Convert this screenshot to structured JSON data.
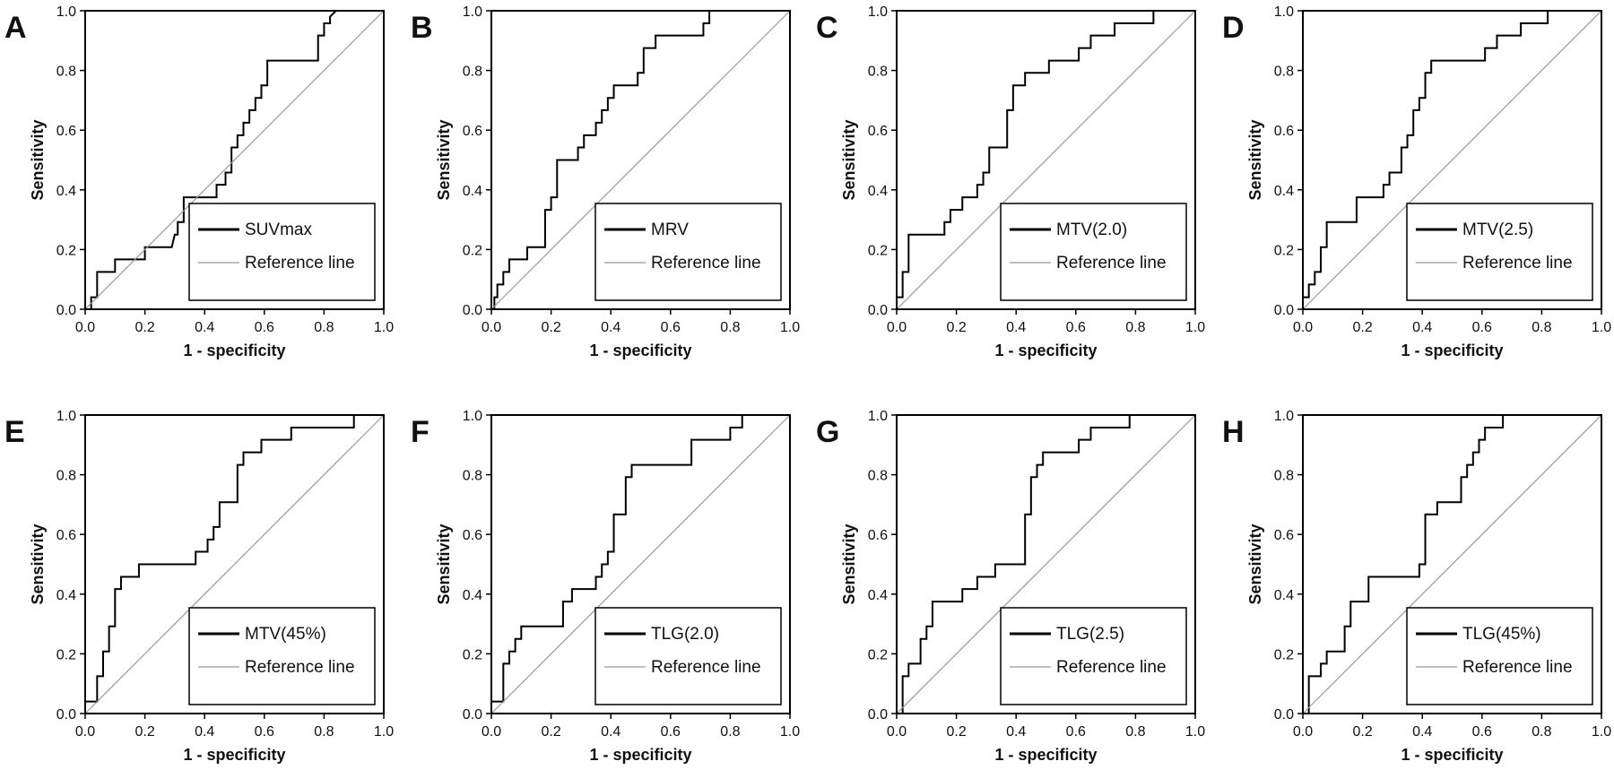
{
  "colors": {
    "roc": "#000000",
    "reference": "#999999",
    "axis": "#000000",
    "background": "#ffffff"
  },
  "chart_data": [
    {
      "panel": "A",
      "type": "line",
      "xlabel": "1 - specificity",
      "ylabel": "Sensitivity",
      "xlim": [
        0,
        1
      ],
      "ylim": [
        0,
        1
      ],
      "xticks": [
        "0.0",
        "0.2",
        "0.4",
        "0.6",
        "0.8",
        "1.0"
      ],
      "yticks": [
        "0.0",
        "0.2",
        "0.4",
        "0.6",
        "0.8",
        "1.0"
      ],
      "legend_position": "bottom-right",
      "series": [
        {
          "name": "SUVmax",
          "style": "roc",
          "x": [
            0,
            0.02,
            0.02,
            0.04,
            0.04,
            0.1,
            0.1,
            0.2,
            0.2,
            0.29,
            0.3,
            0.31,
            0.31,
            0.33,
            0.33,
            0.44,
            0.44,
            0.47,
            0.47,
            0.49,
            0.49,
            0.51,
            0.51,
            0.53,
            0.53,
            0.55,
            0.55,
            0.57,
            0.57,
            0.59,
            0.59,
            0.61,
            0.61,
            0.78,
            0.78,
            0.8,
            0.8,
            0.82,
            0.82,
            0.84
          ],
          "y": [
            0,
            0,
            0.04,
            0.04,
            0.125,
            0.125,
            0.167,
            0.167,
            0.208,
            0.208,
            0.25,
            0.25,
            0.292,
            0.292,
            0.375,
            0.375,
            0.417,
            0.417,
            0.458,
            0.458,
            0.542,
            0.542,
            0.583,
            0.583,
            0.625,
            0.625,
            0.667,
            0.667,
            0.708,
            0.708,
            0.75,
            0.75,
            0.833,
            0.833,
            0.917,
            0.917,
            0.958,
            0.958,
            0.98,
            1.0
          ]
        },
        {
          "name": "Reference line",
          "style": "reference",
          "x": [
            0,
            1
          ],
          "y": [
            0,
            1
          ]
        }
      ]
    },
    {
      "panel": "B",
      "type": "line",
      "xlabel": "1 - specificity",
      "ylabel": "Sensitivity",
      "xlim": [
        0,
        1
      ],
      "ylim": [
        0,
        1
      ],
      "xticks": [
        "0.0",
        "0.2",
        "0.4",
        "0.6",
        "0.8",
        "1.0"
      ],
      "yticks": [
        "0.0",
        "0.2",
        "0.4",
        "0.6",
        "0.8",
        "1.0"
      ],
      "legend_position": "bottom-right",
      "series": [
        {
          "name": "MRV",
          "style": "roc",
          "x": [
            0,
            0.01,
            0.01,
            0.02,
            0.02,
            0.04,
            0.04,
            0.06,
            0.06,
            0.12,
            0.12,
            0.18,
            0.18,
            0.2,
            0.2,
            0.22,
            0.22,
            0.29,
            0.29,
            0.31,
            0.31,
            0.35,
            0.35,
            0.37,
            0.37,
            0.39,
            0.39,
            0.41,
            0.41,
            0.49,
            0.49,
            0.51,
            0.51,
            0.55,
            0.55,
            0.71,
            0.71,
            0.73,
            0.73,
            0.88,
            0.88,
            0.9
          ],
          "y": [
            0,
            0,
            0.04,
            0.04,
            0.083,
            0.083,
            0.125,
            0.125,
            0.167,
            0.167,
            0.208,
            0.208,
            0.333,
            0.333,
            0.375,
            0.375,
            0.5,
            0.5,
            0.542,
            0.542,
            0.583,
            0.583,
            0.625,
            0.625,
            0.667,
            0.667,
            0.708,
            0.708,
            0.75,
            0.75,
            0.792,
            0.792,
            0.875,
            0.875,
            0.917,
            0.917,
            0.958,
            0.958,
            1.0,
            1.0,
            1.0,
            1.0
          ]
        },
        {
          "name": "Reference line",
          "style": "reference",
          "x": [
            0,
            1
          ],
          "y": [
            0,
            1
          ]
        }
      ]
    },
    {
      "panel": "C",
      "type": "line",
      "xlabel": "1 - specificity",
      "ylabel": "Sensitivity",
      "xlim": [
        0,
        1
      ],
      "ylim": [
        0,
        1
      ],
      "xticks": [
        "0.0",
        "0.2",
        "0.4",
        "0.6",
        "0.8",
        "1.0"
      ],
      "yticks": [
        "0.0",
        "0.2",
        "0.4",
        "0.6",
        "0.8",
        "1.0"
      ],
      "legend_position": "bottom-right",
      "series": [
        {
          "name": "MTV(2.0)",
          "style": "roc",
          "x": [
            0,
            0.02,
            0.02,
            0.04,
            0.04,
            0.16,
            0.16,
            0.18,
            0.18,
            0.22,
            0.22,
            0.27,
            0.27,
            0.29,
            0.29,
            0.31,
            0.31,
            0.37,
            0.37,
            0.39,
            0.39,
            0.43,
            0.43,
            0.51,
            0.51,
            0.61,
            0.61,
            0.65,
            0.65,
            0.69,
            0.69,
            0.73,
            0.73,
            0.76,
            0.76,
            0.86,
            0.86,
            0.88
          ],
          "y": [
            0.04,
            0.04,
            0.125,
            0.125,
            0.25,
            0.25,
            0.292,
            0.292,
            0.333,
            0.333,
            0.375,
            0.375,
            0.417,
            0.417,
            0.458,
            0.458,
            0.542,
            0.542,
            0.667,
            0.667,
            0.75,
            0.75,
            0.792,
            0.792,
            0.833,
            0.833,
            0.875,
            0.875,
            0.917,
            0.917,
            0.917,
            0.917,
            0.958,
            0.958,
            0.958,
            0.958,
            1.0,
            1.0
          ]
        },
        {
          "name": "Reference line",
          "style": "reference",
          "x": [
            0,
            1
          ],
          "y": [
            0,
            1
          ]
        }
      ]
    },
    {
      "panel": "D",
      "type": "line",
      "xlabel": "1 - specificity",
      "ylabel": "Sensitivity",
      "xlim": [
        0,
        1
      ],
      "ylim": [
        0,
        1
      ],
      "xticks": [
        "0.0",
        "0.2",
        "0.4",
        "0.6",
        "0.8",
        "1.0"
      ],
      "yticks": [
        "0.0",
        "0.2",
        "0.4",
        "0.6",
        "0.8",
        "1.0"
      ],
      "legend_position": "bottom-right",
      "series": [
        {
          "name": "MTV(2.5)",
          "style": "roc",
          "x": [
            0,
            0.02,
            0.02,
            0.04,
            0.04,
            0.06,
            0.06,
            0.08,
            0.08,
            0.18,
            0.18,
            0.27,
            0.27,
            0.29,
            0.29,
            0.33,
            0.33,
            0.35,
            0.35,
            0.37,
            0.37,
            0.39,
            0.39,
            0.41,
            0.41,
            0.43,
            0.43,
            0.49,
            0.49,
            0.61,
            0.61,
            0.65,
            0.65,
            0.73,
            0.73,
            0.76,
            0.76,
            0.82,
            0.82
          ],
          "y": [
            0.04,
            0.04,
            0.083,
            0.083,
            0.125,
            0.125,
            0.208,
            0.208,
            0.292,
            0.292,
            0.375,
            0.375,
            0.417,
            0.417,
            0.458,
            0.458,
            0.542,
            0.542,
            0.583,
            0.583,
            0.667,
            0.667,
            0.708,
            0.708,
            0.792,
            0.792,
            0.833,
            0.833,
            0.833,
            0.833,
            0.875,
            0.875,
            0.917,
            0.917,
            0.958,
            0.958,
            0.958,
            0.958,
            1.0
          ]
        },
        {
          "name": "Reference line",
          "style": "reference",
          "x": [
            0,
            1
          ],
          "y": [
            0,
            1
          ]
        }
      ]
    },
    {
      "panel": "E",
      "type": "line",
      "xlabel": "1 - specificity",
      "ylabel": "Sensitivity",
      "xlim": [
        0,
        1
      ],
      "ylim": [
        0,
        1
      ],
      "xticks": [
        "0.0",
        "0.2",
        "0.4",
        "0.6",
        "0.8",
        "1.0"
      ],
      "yticks": [
        "0.0",
        "0.2",
        "0.4",
        "0.6",
        "0.8",
        "1.0"
      ],
      "legend_position": "bottom-right",
      "series": [
        {
          "name": "MTV(45%)",
          "style": "roc",
          "x": [
            0,
            0.04,
            0.04,
            0.06,
            0.06,
            0.08,
            0.08,
            0.1,
            0.1,
            0.12,
            0.12,
            0.18,
            0.18,
            0.37,
            0.37,
            0.41,
            0.41,
            0.43,
            0.43,
            0.45,
            0.45,
            0.51,
            0.51,
            0.53,
            0.53,
            0.59,
            0.59,
            0.69,
            0.69,
            0.76,
            0.76,
            0.9,
            0.9,
            0.92
          ],
          "y": [
            0.04,
            0.04,
            0.125,
            0.125,
            0.208,
            0.208,
            0.292,
            0.292,
            0.417,
            0.417,
            0.458,
            0.458,
            0.5,
            0.5,
            0.542,
            0.542,
            0.583,
            0.583,
            0.625,
            0.625,
            0.708,
            0.708,
            0.833,
            0.833,
            0.875,
            0.875,
            0.917,
            0.917,
            0.958,
            0.958,
            0.958,
            0.958,
            1.0,
            1.0
          ]
        },
        {
          "name": "Reference line",
          "style": "reference",
          "x": [
            0,
            1
          ],
          "y": [
            0,
            1
          ]
        }
      ]
    },
    {
      "panel": "F",
      "type": "line",
      "xlabel": "1 - specificity",
      "ylabel": "Sensitivity",
      "xlim": [
        0,
        1
      ],
      "ylim": [
        0,
        1
      ],
      "xticks": [
        "0.0",
        "0.2",
        "0.4",
        "0.6",
        "0.8",
        "1.0"
      ],
      "yticks": [
        "0.0",
        "0.2",
        "0.4",
        "0.6",
        "0.8",
        "1.0"
      ],
      "legend_position": "bottom-right",
      "series": [
        {
          "name": "TLG(2.0)",
          "style": "roc",
          "x": [
            0,
            0.04,
            0.04,
            0.06,
            0.06,
            0.08,
            0.08,
            0.1,
            0.1,
            0.24,
            0.24,
            0.27,
            0.27,
            0.35,
            0.35,
            0.37,
            0.37,
            0.39,
            0.39,
            0.41,
            0.41,
            0.45,
            0.45,
            0.47,
            0.47,
            0.49,
            0.49,
            0.51,
            0.51,
            0.67,
            0.67,
            0.8,
            0.8,
            0.84,
            0.84
          ],
          "y": [
            0.04,
            0.04,
            0.167,
            0.167,
            0.208,
            0.208,
            0.25,
            0.25,
            0.292,
            0.292,
            0.375,
            0.375,
            0.417,
            0.417,
            0.458,
            0.458,
            0.5,
            0.5,
            0.542,
            0.542,
            0.667,
            0.667,
            0.792,
            0.792,
            0.833,
            0.833,
            0.833,
            0.833,
            0.833,
            0.833,
            0.917,
            0.917,
            0.958,
            0.958,
            1.0
          ]
        },
        {
          "name": "Reference line",
          "style": "reference",
          "x": [
            0,
            1
          ],
          "y": [
            0,
            1
          ]
        }
      ]
    },
    {
      "panel": "G",
      "type": "line",
      "xlabel": "1 - specificity",
      "ylabel": "Sensitivity",
      "xlim": [
        0,
        1
      ],
      "ylim": [
        0,
        1
      ],
      "xticks": [
        "0.0",
        "0.2",
        "0.4",
        "0.6",
        "0.8",
        "1.0"
      ],
      "yticks": [
        "0.0",
        "0.2",
        "0.4",
        "0.6",
        "0.8",
        "1.0"
      ],
      "legend_position": "bottom-right",
      "series": [
        {
          "name": "TLG(2.5)",
          "style": "roc",
          "x": [
            0,
            0.02,
            0.02,
            0.04,
            0.04,
            0.08,
            0.08,
            0.1,
            0.1,
            0.12,
            0.12,
            0.22,
            0.22,
            0.27,
            0.27,
            0.33,
            0.33,
            0.43,
            0.43,
            0.45,
            0.45,
            0.47,
            0.47,
            0.49,
            0.49,
            0.61,
            0.61,
            0.65,
            0.65,
            0.78,
            0.78,
            0.8
          ],
          "y": [
            0,
            0,
            0.125,
            0.125,
            0.167,
            0.167,
            0.25,
            0.25,
            0.292,
            0.292,
            0.375,
            0.375,
            0.417,
            0.417,
            0.458,
            0.458,
            0.5,
            0.5,
            0.667,
            0.667,
            0.792,
            0.792,
            0.833,
            0.833,
            0.875,
            0.875,
            0.917,
            0.917,
            0.958,
            0.958,
            1.0,
            1.0
          ]
        },
        {
          "name": "Reference line",
          "style": "reference",
          "x": [
            0,
            1
          ],
          "y": [
            0,
            1
          ]
        }
      ]
    },
    {
      "panel": "H",
      "type": "line",
      "xlabel": "1 - specificity",
      "ylabel": "Sensitivity",
      "xlim": [
        0,
        1
      ],
      "ylim": [
        0,
        1
      ],
      "xticks": [
        "0.0",
        "0.2",
        "0.4",
        "0.6",
        "0.8",
        "1.0"
      ],
      "yticks": [
        "0.0",
        "0.2",
        "0.4",
        "0.6",
        "0.8",
        "1.0"
      ],
      "legend_position": "bottom-right",
      "series": [
        {
          "name": "TLG(45%)",
          "style": "roc",
          "x": [
            0,
            0.02,
            0.02,
            0.06,
            0.06,
            0.08,
            0.08,
            0.14,
            0.14,
            0.16,
            0.16,
            0.22,
            0.22,
            0.39,
            0.39,
            0.41,
            0.41,
            0.45,
            0.45,
            0.53,
            0.53,
            0.55,
            0.55,
            0.57,
            0.57,
            0.59,
            0.59,
            0.61,
            0.61,
            0.67,
            0.67,
            0.92,
            0.92,
            0.94
          ],
          "y": [
            0,
            0,
            0.125,
            0.125,
            0.167,
            0.167,
            0.208,
            0.208,
            0.292,
            0.292,
            0.375,
            0.375,
            0.458,
            0.458,
            0.5,
            0.5,
            0.667,
            0.667,
            0.708,
            0.708,
            0.792,
            0.792,
            0.833,
            0.833,
            0.875,
            0.875,
            0.917,
            0.917,
            0.958,
            0.958,
            1.0,
            1.0,
            1.0,
            1.0
          ]
        },
        {
          "name": "Reference line",
          "style": "reference",
          "x": [
            0,
            1
          ],
          "y": [
            0,
            1
          ]
        }
      ]
    }
  ]
}
